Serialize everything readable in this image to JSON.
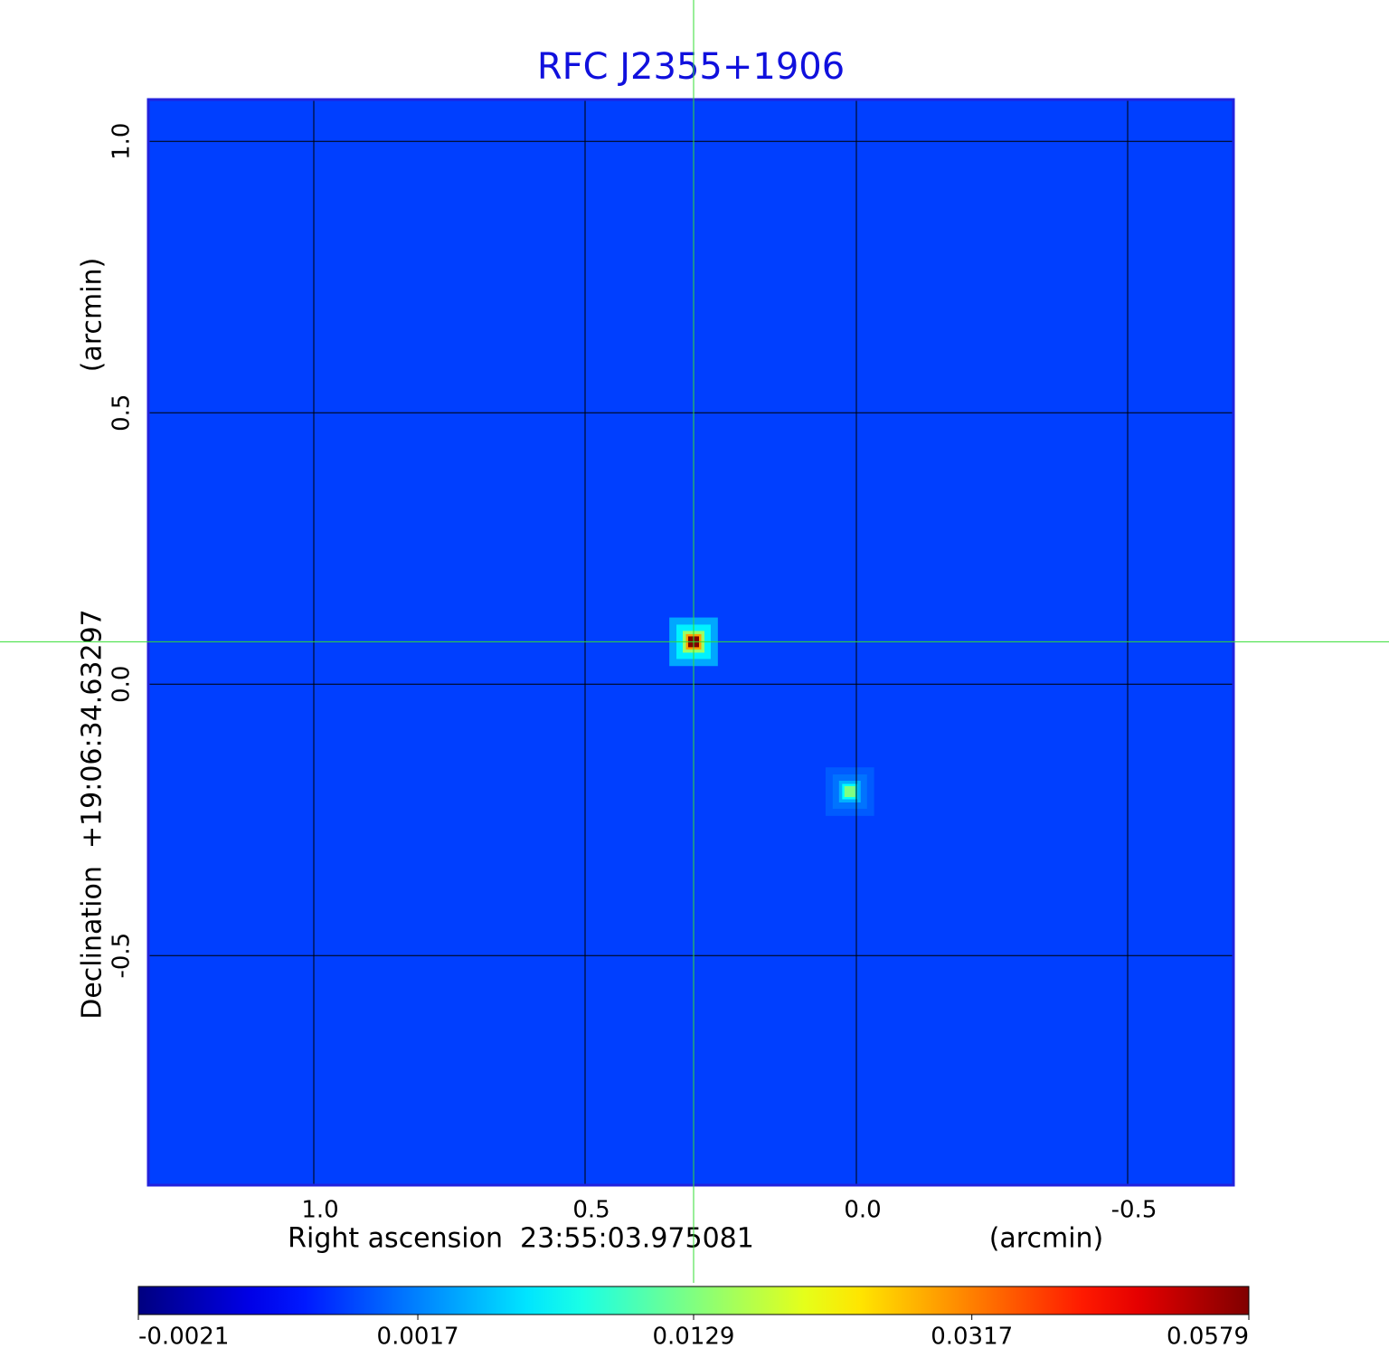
{
  "chart_data": {
    "type": "image",
    "title": "RFC J2355+1906",
    "x_label": "Right ascension  23:55:03.975081",
    "x_unit": "(arcmin)",
    "y_label": "Declination  +19:06:34.63297",
    "y_unit": "(arcmin)",
    "xlim": [
      1.305,
      -0.695
    ],
    "ylim": [
      -0.923,
      1.077
    ],
    "xticks": [
      {
        "value": 1,
        "label": "1.0"
      },
      0.5,
      {
        "value": 0,
        "label": "0.0"
      },
      -0.5
    ],
    "yticks": [
      {
        "value": 1,
        "label": "1.0"
      },
      0.5,
      {
        "value": 0,
        "label": "0.0"
      },
      -0.5
    ],
    "grid": true,
    "background": 0,
    "sources": [
      {
        "x": 0.3,
        "y": 0.078,
        "peak": 0.0579
      },
      {
        "x": 0.012,
        "y": -0.198,
        "peak": 0.0129
      }
    ],
    "marker": {
      "x": 0.3,
      "y": 0.078,
      "color": "#33dd33"
    },
    "colorbar": {
      "colormap": "jet",
      "scale": "sqrt",
      "lim": [
        -0.0021,
        0.0579
      ],
      "ticks": [
        -0.0021,
        0.0017,
        0.0129,
        0.0317,
        0.0579
      ]
    }
  }
}
